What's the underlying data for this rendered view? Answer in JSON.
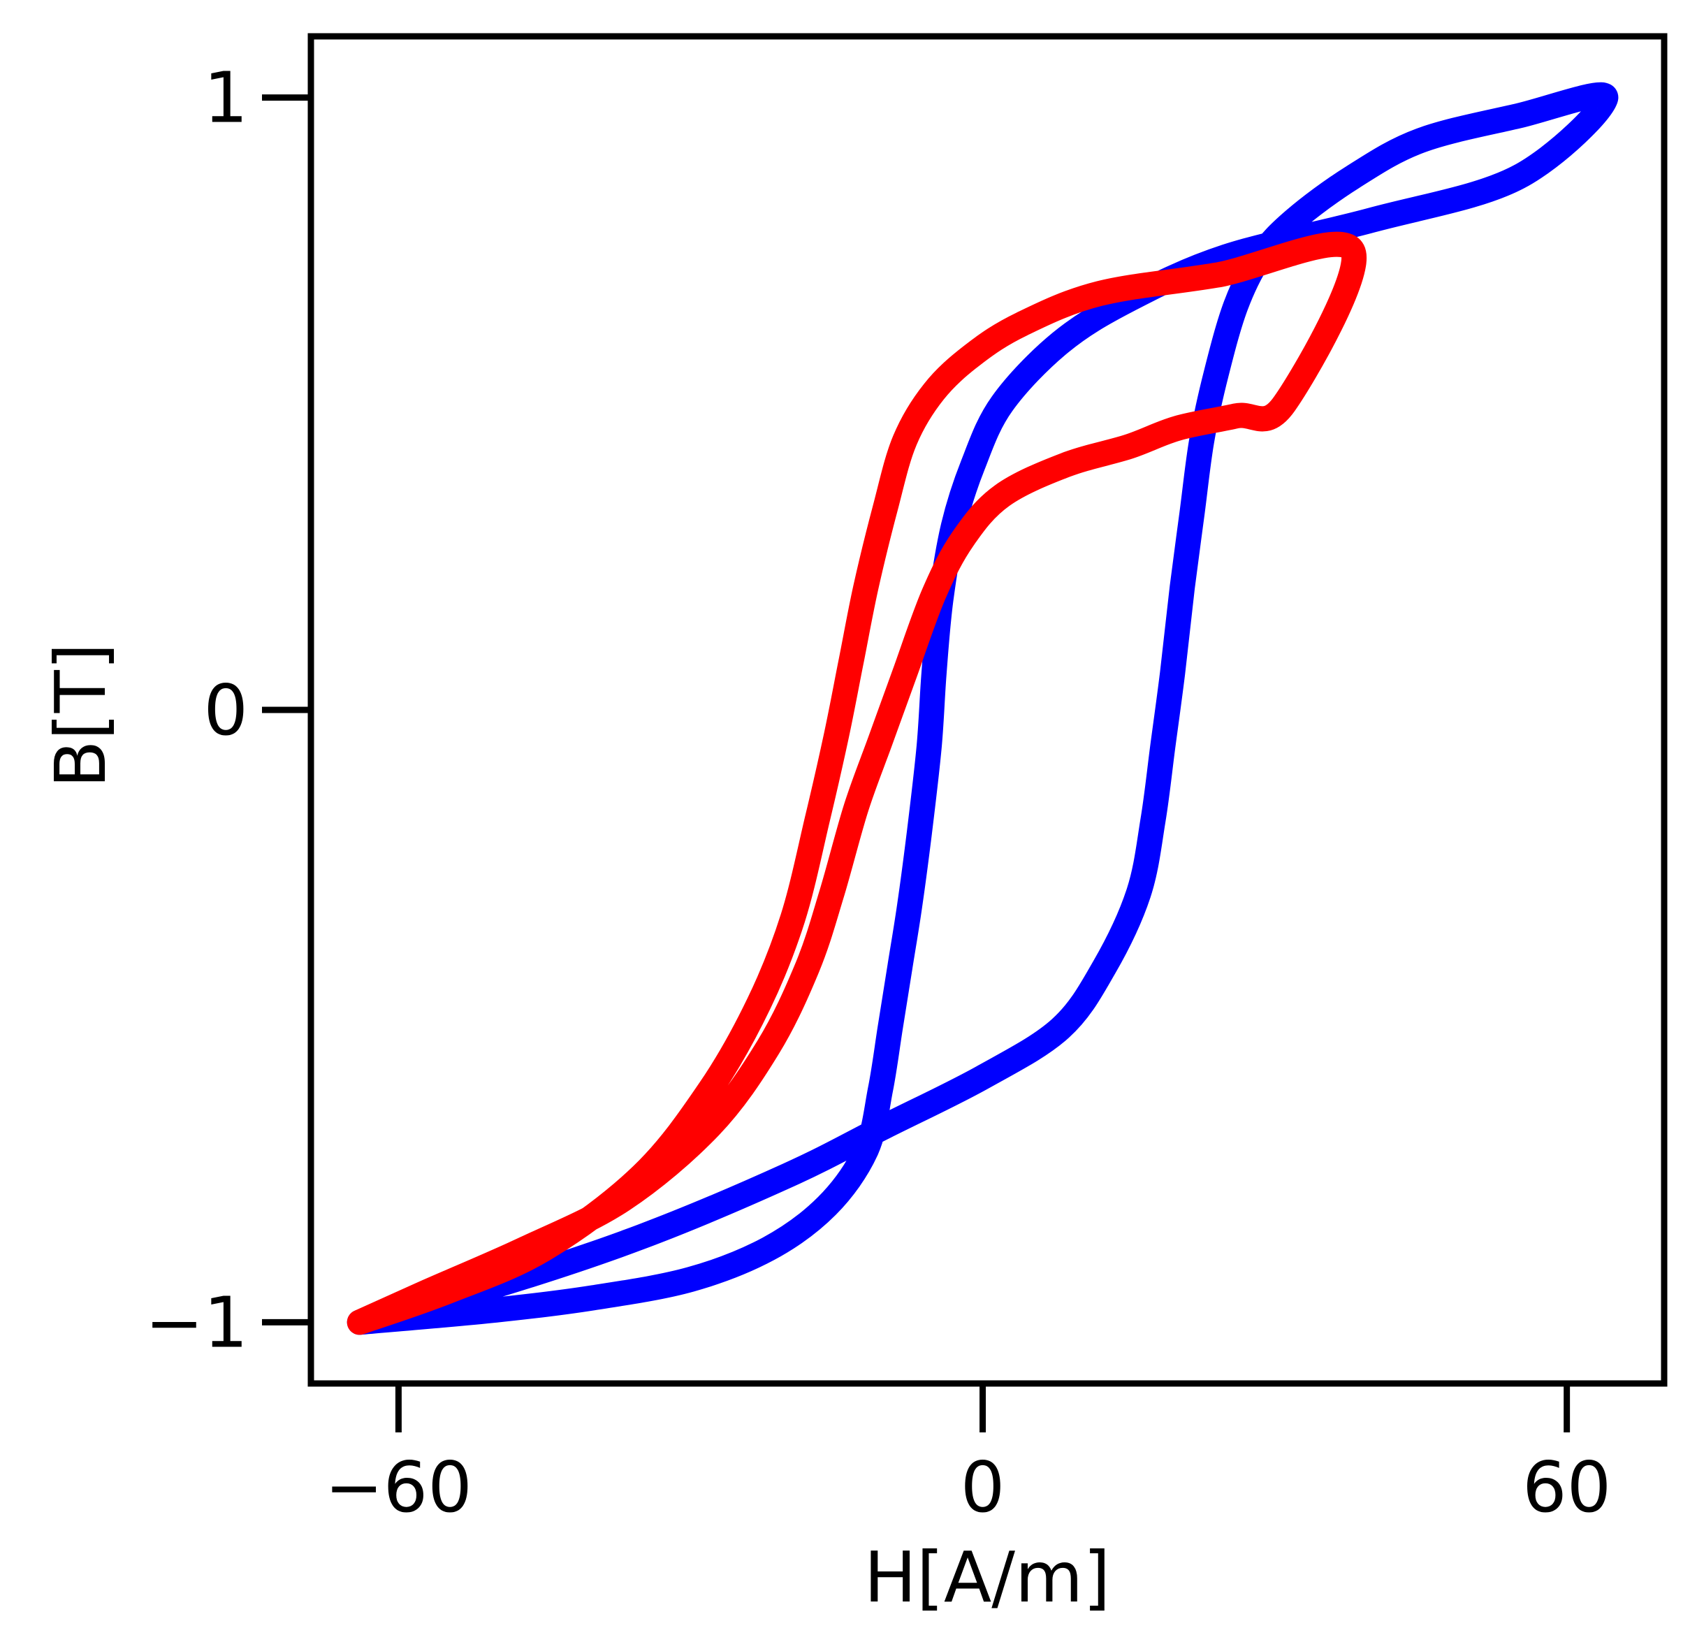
{
  "chart_data": {
    "type": "line",
    "title": "",
    "xlabel": "H[A/m]",
    "ylabel": "B[T]",
    "xlim": [
      -69,
      70
    ],
    "ylim": [
      -1.1,
      1.1
    ],
    "xticks": [
      -60,
      0,
      60
    ],
    "yticks": [
      -1,
      0,
      1
    ],
    "xtick_labels": [
      "−60",
      "0",
      "60"
    ],
    "ytick_labels": [
      "−1",
      "0",
      "1"
    ],
    "grid": false,
    "legend": "none",
    "series": [
      {
        "color": "#0000ff",
        "x": [
          -64,
          -50,
          -40,
          -30,
          -22,
          -16,
          -12,
          -10.5,
          -9.5,
          -8.5,
          -7.5,
          -6.5,
          -5.5,
          -5,
          -4.3,
          -3,
          -1,
          2,
          8,
          15,
          25,
          40,
          55,
          64,
          55,
          45,
          38,
          32,
          28.5,
          26,
          24,
          22.5,
          21.5,
          20.5,
          19.5,
          18.5,
          17.5,
          16,
          12.5,
          8,
          0,
          -10,
          -20,
          -35,
          -50,
          -64
        ],
        "y": [
          -1.0,
          -0.98,
          -0.96,
          -0.93,
          -0.88,
          -0.81,
          -0.72,
          -0.62,
          -0.52,
          -0.42,
          -0.32,
          -0.2,
          -0.06,
          0.06,
          0.18,
          0.3,
          0.4,
          0.5,
          0.6,
          0.67,
          0.74,
          0.8,
          0.87,
          1.0,
          0.97,
          0.93,
          0.87,
          0.8,
          0.74,
          0.66,
          0.55,
          0.44,
          0.32,
          0.2,
          0.06,
          -0.06,
          -0.18,
          -0.3,
          -0.42,
          -0.52,
          -0.6,
          -0.68,
          -0.76,
          -0.86,
          -0.94,
          -1.0
        ]
      },
      {
        "color": "#ff0000",
        "x": [
          -64,
          -55,
          -45,
          -35,
          -28,
          -23,
          -19.5,
          -17,
          -15,
          -13.5,
          -12,
          -10,
          -8,
          -5,
          -1,
          4,
          12,
          24,
          38,
          31,
          26,
          20,
          15,
          8.5,
          2,
          -2,
          -5,
          -8,
          -10.5,
          -13,
          -15.5,
          -18,
          -22,
          -28,
          -37,
          -47,
          -57,
          -64
        ],
        "y": [
          -1.0,
          -0.95,
          -0.88,
          -0.76,
          -0.62,
          -0.48,
          -0.34,
          -0.18,
          -0.04,
          0.08,
          0.2,
          0.33,
          0.44,
          0.52,
          0.58,
          0.63,
          0.68,
          0.71,
          0.75,
          0.5,
          0.48,
          0.46,
          0.43,
          0.4,
          0.35,
          0.28,
          0.19,
          0.06,
          -0.05,
          -0.16,
          -0.3,
          -0.42,
          -0.55,
          -0.68,
          -0.8,
          -0.88,
          -0.95,
          -1.0
        ]
      }
    ]
  }
}
